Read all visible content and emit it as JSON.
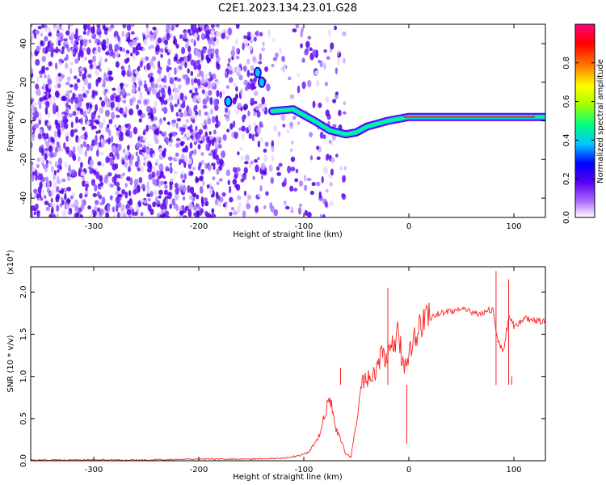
{
  "figure": {
    "title": "C2E1.2023.134.23.01.G28"
  },
  "chart_data": [
    {
      "type": "heatmap",
      "name": "spectrogram",
      "xlabel": "Height of straight line (km)",
      "ylabel": "Frequency (Hz)",
      "xlim": [
        -360,
        130
      ],
      "ylim": [
        -50,
        50
      ],
      "xticks": [
        -300,
        -200,
        -100,
        0,
        100
      ],
      "yticks": [
        -40,
        -20,
        0,
        20,
        40
      ],
      "colorbar": {
        "label": "Normalized spectral amplitude",
        "range": [
          0,
          1
        ],
        "ticks": [
          0.0,
          0.2,
          0.4,
          0.6,
          0.8
        ],
        "colors": [
          "#ffffff",
          "#b070ff",
          "#5a00f0",
          "#0000ff",
          "#00c8ff",
          "#00ff80",
          "#a0ff00",
          "#ffff00",
          "#ff8000",
          "#ff0000",
          "#ff0080"
        ]
      },
      "carrier_trace": {
        "x": [
          -130,
          -110,
          -90,
          -75,
          -60,
          -50,
          -40,
          -20,
          0,
          50,
          100,
          130
        ],
        "y": [
          5,
          6,
          0,
          -5,
          -7,
          -6,
          -3,
          0,
          2,
          2,
          2,
          2
        ]
      },
      "noise_region_x": [
        -360,
        -100
      ]
    },
    {
      "type": "line",
      "name": "snr",
      "xlabel": "Height of straight line (km)",
      "ylabel": "SNR (10 * v/v)",
      "yscale_label": "(x10",
      "yscale_exp": "4",
      "yscale_close": ")",
      "xlim": [
        -360,
        130
      ],
      "ylim": [
        0,
        2.3
      ],
      "xticks": [
        -300,
        -200,
        -100,
        0,
        100
      ],
      "yticks": [
        "0.0",
        "0.5",
        "1.0",
        "1.5",
        "2.0"
      ],
      "color": "#ff2020",
      "series": [
        {
          "x": [
            -360,
            -300,
            -250,
            -200,
            -150,
            -120,
            -105,
            -95,
            -90,
            -85,
            -80,
            -75,
            -70,
            -65,
            -60,
            -55,
            -50,
            -45,
            -40,
            -35,
            -30,
            -25,
            -20,
            -15,
            -10,
            -5,
            0,
            10,
            20,
            30,
            40,
            50,
            60,
            70,
            80,
            85,
            90,
            95,
            100,
            110,
            120,
            130
          ],
          "y": [
            0.01,
            0.01,
            0.01,
            0.02,
            0.02,
            0.03,
            0.06,
            0.1,
            0.2,
            0.3,
            0.55,
            0.75,
            0.4,
            0.25,
            0.08,
            0.05,
            0.45,
            0.9,
            1.0,
            0.95,
            1.1,
            1.3,
            1.2,
            1.35,
            1.5,
            1.1,
            1.3,
            1.6,
            1.7,
            1.75,
            1.78,
            1.79,
            1.76,
            1.75,
            1.8,
            1.4,
            1.3,
            1.7,
            1.6,
            1.68,
            1.66,
            1.65
          ]
        }
      ],
      "spikes": [
        {
          "x": -65,
          "y": 1.1
        },
        {
          "x": -20,
          "y": 2.05
        },
        {
          "x": 83,
          "y": 2.25
        },
        {
          "x": 95,
          "y": 2.15
        },
        {
          "x": 98,
          "y": 1.0
        },
        {
          "x": -2,
          "y": 0.2
        }
      ]
    }
  ]
}
